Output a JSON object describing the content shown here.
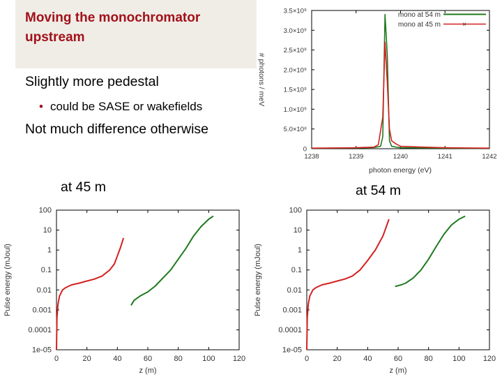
{
  "slide": {
    "title_line1": "Moving the monochromator",
    "title_line2": "upstream",
    "bullets": [
      {
        "text": "Slightly more pedestal"
      },
      {
        "text": "could be SASE or wakefields"
      },
      {
        "text": "Not much difference otherwise"
      }
    ],
    "caption_left": "at 45 m",
    "caption_right": "at 54 m",
    "colors": {
      "title": "#a1111a",
      "series_54m": "#1e7a1e",
      "series_45m": "#d42020"
    }
  },
  "chart_data": [
    {
      "type": "line",
      "xlabel": "photon energy (eV)",
      "ylabel": "# photons / meV",
      "xlim": [
        1238,
        1242
      ],
      "ylim": [
        0,
        3500000000
      ],
      "xticks": [
        "1238",
        "1239",
        "1240",
        "1241",
        "1242"
      ],
      "yticks": [
        "0",
        "5.0×10⁸",
        "1.0×10⁹",
        "1.5×10⁹",
        "2.0×10⁹",
        "2.5×10⁹",
        "3.0×10⁹",
        "3.5×10⁹"
      ],
      "ytick_values": [
        0,
        500000000,
        1000000000,
        1500000000,
        2000000000,
        2500000000,
        3000000000,
        3500000000
      ],
      "legend_position": "top-right",
      "series": [
        {
          "name": "mono at 54 m",
          "x": [
            1238.0,
            1238.5,
            1239.0,
            1239.4,
            1239.55,
            1239.6,
            1239.65,
            1239.7,
            1239.75,
            1239.8,
            1239.9,
            1240.0,
            1240.5,
            1241.0,
            1241.5,
            1242.0
          ],
          "y": [
            10000000,
            15000000,
            20000000,
            30000000,
            60000000,
            300000000,
            3400000000,
            2400000000,
            200000000,
            60000000,
            40000000,
            25000000,
            20000000,
            15000000,
            10000000,
            10000000
          ]
        },
        {
          "name": "mono at 45 m",
          "x": [
            1238.0,
            1238.5,
            1239.0,
            1239.4,
            1239.5,
            1239.6,
            1239.65,
            1239.7,
            1239.75,
            1239.8,
            1239.9,
            1240.0,
            1240.5,
            1241.0,
            1241.5,
            1242.0
          ],
          "y": [
            15000000,
            20000000,
            25000000,
            40000000,
            100000000,
            800000000,
            2700000000,
            1700000000,
            500000000,
            200000000,
            120000000,
            60000000,
            40000000,
            25000000,
            20000000,
            15000000
          ]
        }
      ]
    },
    {
      "type": "line",
      "caption": "at 45 m",
      "xlabel": "z (m)",
      "ylabel": "Pulse energy (mJoul)",
      "xlim": [
        0,
        120
      ],
      "ylim": [
        1e-05,
        100
      ],
      "yscale": "log",
      "xticks": [
        "0",
        "20",
        "40",
        "60",
        "80",
        "100",
        "120"
      ],
      "yticks": [
        "1e-05",
        "0.0001",
        "0.001",
        "0.01",
        "0.1",
        "1",
        "10",
        "100"
      ],
      "ytick_values": [
        1e-05,
        0.0001,
        0.001,
        0.01,
        0.1,
        1,
        10,
        100
      ],
      "series": [
        {
          "x": [
            0,
            0.3,
            1,
            2,
            4,
            6,
            10,
            15,
            20,
            25,
            30,
            35,
            38,
            40,
            42,
            44
          ],
          "y": [
            1e-05,
            0.0004,
            0.002,
            0.005,
            0.01,
            0.013,
            0.018,
            0.022,
            0.028,
            0.035,
            0.05,
            0.1,
            0.2,
            0.5,
            1.3,
            4
          ]
        },
        {
          "x": [
            49,
            51,
            55,
            60,
            65,
            70,
            75,
            80,
            85,
            90,
            95,
            100,
            103
          ],
          "y": [
            0.0017,
            0.003,
            0.005,
            0.008,
            0.016,
            0.04,
            0.1,
            0.35,
            1.2,
            5,
            15,
            35,
            50
          ]
        }
      ]
    },
    {
      "type": "line",
      "caption": "at 54 m",
      "xlabel": "z (m)",
      "ylabel": "Pulse energy (mJoul)",
      "xlim": [
        0,
        120
      ],
      "ylim": [
        1e-05,
        100
      ],
      "yscale": "log",
      "xticks": [
        "0",
        "20",
        "40",
        "60",
        "80",
        "100",
        "120"
      ],
      "yticks": [
        "1e-05",
        "0.0001",
        "0.001",
        "0.01",
        "0.1",
        "1",
        "10",
        "100"
      ],
      "ytick_values": [
        1e-05,
        0.0001,
        0.001,
        0.01,
        0.1,
        1,
        10,
        100
      ],
      "series": [
        {
          "x": [
            0,
            0.3,
            1,
            2,
            4,
            6,
            10,
            15,
            20,
            25,
            30,
            35,
            40,
            45,
            50,
            54
          ],
          "y": [
            1e-05,
            0.0004,
            0.002,
            0.005,
            0.01,
            0.013,
            0.018,
            0.022,
            0.028,
            0.035,
            0.05,
            0.1,
            0.3,
            1,
            5,
            35
          ]
        },
        {
          "x": [
            58,
            62,
            65,
            70,
            75,
            80,
            85,
            90,
            95,
            100,
            104
          ],
          "y": [
            0.015,
            0.018,
            0.022,
            0.04,
            0.1,
            0.35,
            1.5,
            6,
            18,
            35,
            50
          ]
        }
      ]
    }
  ]
}
